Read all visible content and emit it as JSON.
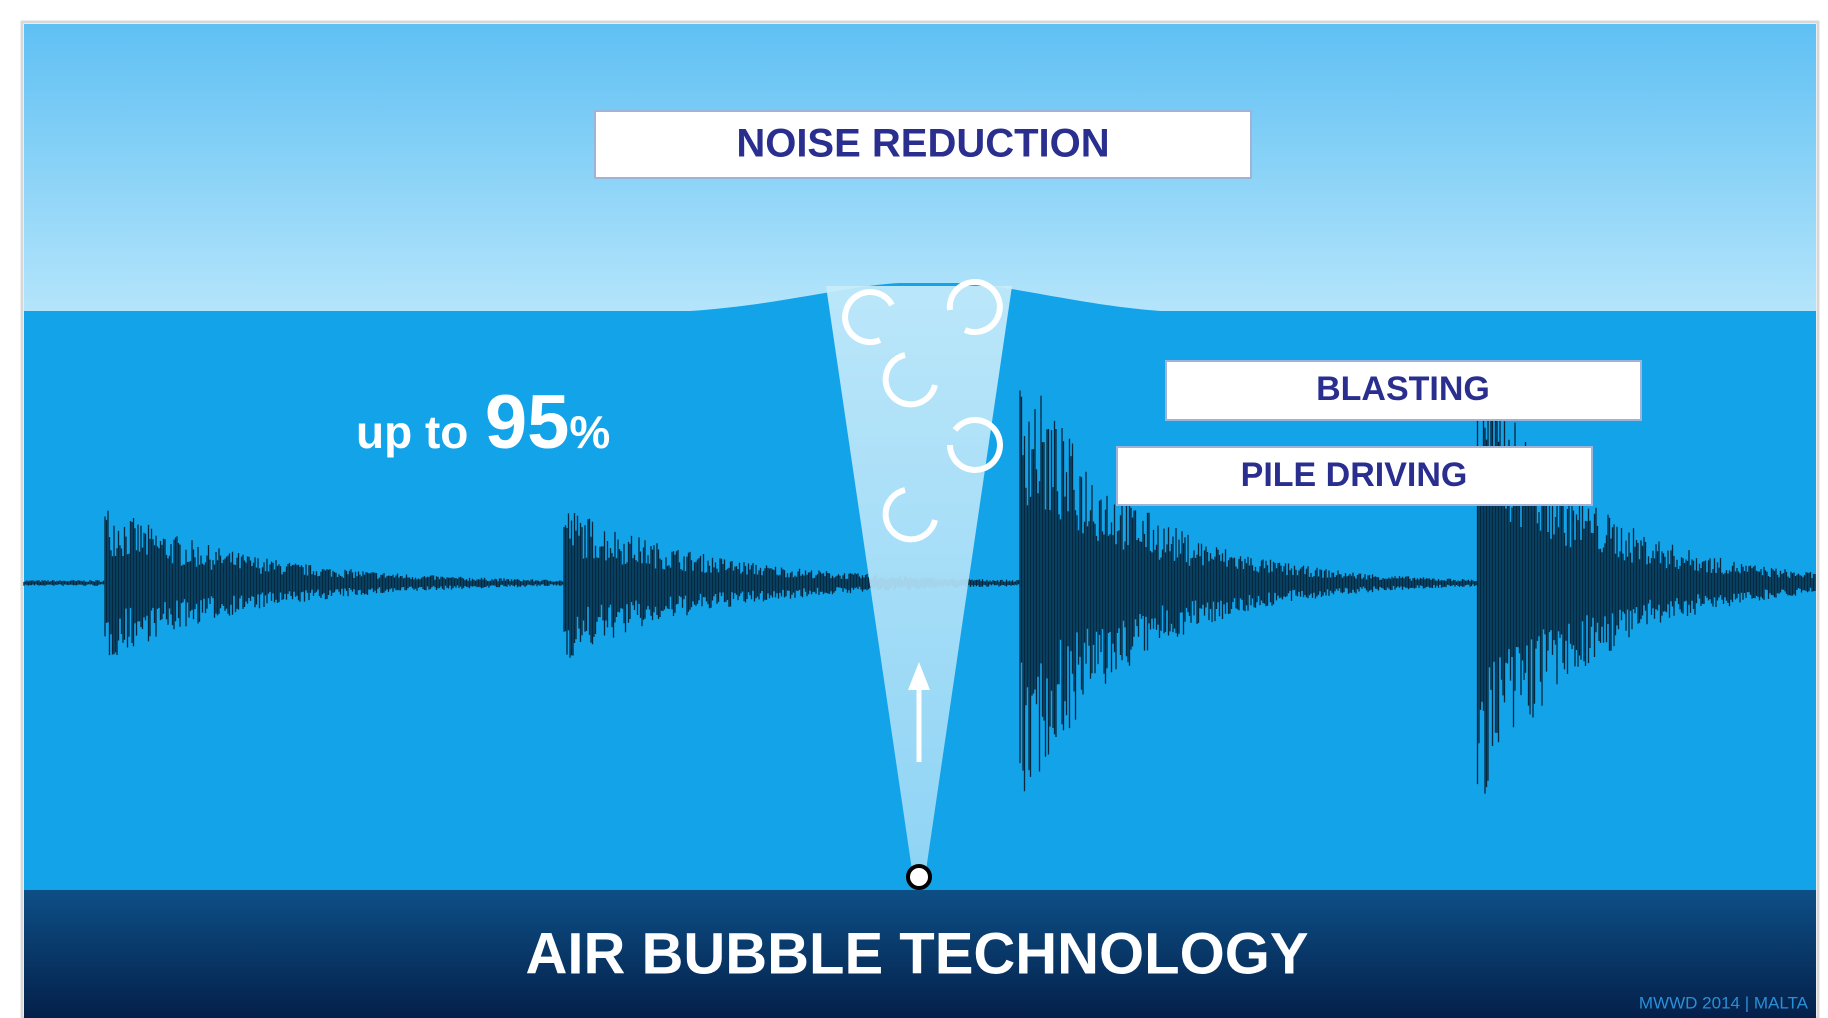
{
  "labels": {
    "noise_reduction": "NOISE REDUCTION",
    "blasting": "BLASTING",
    "pile_driving": "PILE DRIVING"
  },
  "reduction": {
    "prefix": "up to",
    "number": "95",
    "unit": "%"
  },
  "footer": {
    "title": "AIR BUBBLE TECHNOLOGY",
    "credit": "MWWD 2014 | MALTA"
  }
}
